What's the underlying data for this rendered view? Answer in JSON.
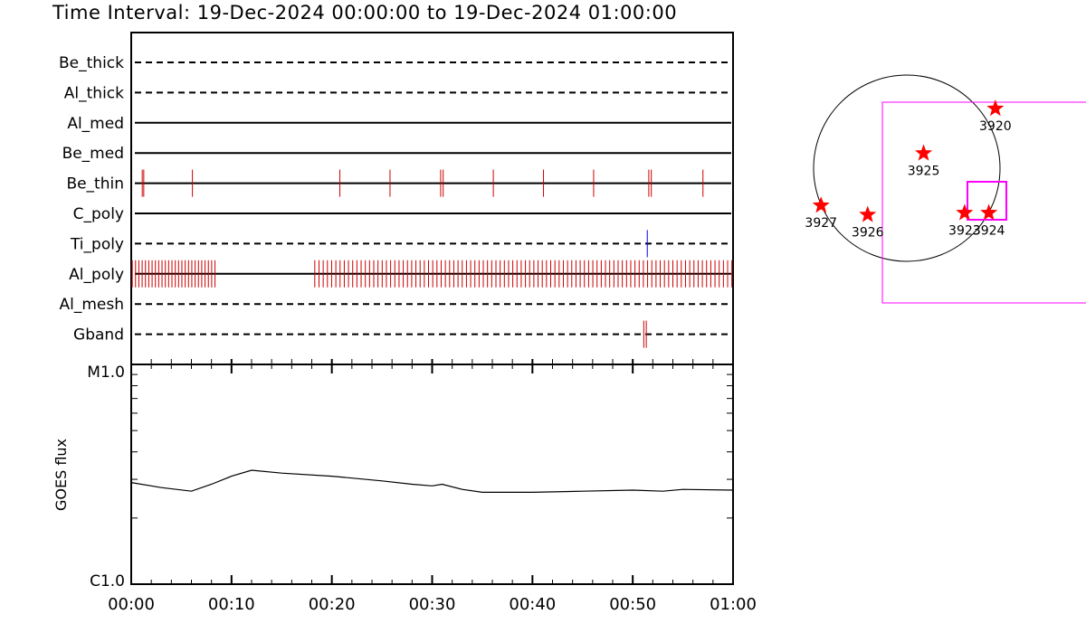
{
  "title": "Time Interval: 19-Dec-2024 00:00:00 to 19-Dec-2024 01:00:00",
  "chart_data": [
    {
      "type": "scatter",
      "panel": "filter-observation-timeline",
      "time_axis_min": 0,
      "time_axis_max": 60,
      "rows": [
        {
          "label": "Be_thick",
          "line": "dashed",
          "color": "#000000",
          "events_min": []
        },
        {
          "label": "Al_thick",
          "line": "dashed",
          "color": "#000000",
          "events_min": []
        },
        {
          "label": "Al_med",
          "line": "solid",
          "color": "#000000",
          "events_min": []
        },
        {
          "label": "Be_med",
          "line": "solid",
          "color": "#000000",
          "events_min": []
        },
        {
          "label": "Be_thin",
          "line": "solid",
          "color": "#000000",
          "events_min": [
            1.1,
            1.25,
            6.1,
            20.8,
            25.8,
            30.85,
            31.1,
            36.1,
            41.1,
            46.1,
            51.6,
            51.85,
            57.0
          ]
        },
        {
          "label": "C_poly",
          "line": "solid",
          "color": "#000000",
          "events_min": []
        },
        {
          "label": "Ti_poly",
          "line": "dashed",
          "color": "#000000",
          "events_min": [
            51.45
          ],
          "event_color": "#0000ff"
        },
        {
          "label": "Al_poly",
          "line": "solid",
          "color": "#000000",
          "event_segments": [
            {
              "start": 0.1,
              "end": 8.5,
              "step": 0.33
            },
            {
              "start": 18.3,
              "end": 60.0,
              "step": 0.42
            }
          ]
        },
        {
          "label": "Al_mesh",
          "line": "dashed",
          "color": "#000000",
          "events_min": []
        },
        {
          "label": "Gband",
          "line": "dashed",
          "color": "#000000",
          "events_min": [
            51.1,
            51.35
          ]
        }
      ],
      "event_color": "#cc0000"
    },
    {
      "type": "line",
      "panel": "goes-flux",
      "ylabel": "GOES flux",
      "yscale": "log",
      "ylim_labels": [
        "C1.0",
        "M1.0"
      ],
      "ylim": [
        1e-06,
        1e-05
      ],
      "x_ticks": [
        "00:00",
        "00:10",
        "00:20",
        "00:30",
        "00:40",
        "00:50",
        "01:00"
      ],
      "x": [
        0,
        3,
        6,
        8,
        10,
        12,
        15,
        20,
        25,
        28,
        30,
        31,
        33,
        35,
        40,
        45,
        50,
        53,
        55,
        60
      ],
      "values": [
        2.9e-06,
        2.75e-06,
        2.65e-06,
        2.85e-06,
        3.1e-06,
        3.3e-06,
        3.2e-06,
        3.1e-06,
        2.95e-06,
        2.85e-06,
        2.8e-06,
        2.85e-06,
        2.7e-06,
        2.62e-06,
        2.62e-06,
        2.65e-06,
        2.68e-06,
        2.65e-06,
        2.7e-06,
        2.68e-06
      ]
    },
    {
      "type": "scatter",
      "panel": "solar-disk-map",
      "points": [
        {
          "label": "3920",
          "x": 0.475,
          "y": 0.32
        },
        {
          "label": "3925",
          "x": 0.09,
          "y": 0.08
        },
        {
          "label": "3927",
          "x": -0.46,
          "y": -0.2
        },
        {
          "label": "3926",
          "x": -0.21,
          "y": -0.25
        },
        {
          "label": "3923",
          "x": 0.31,
          "y": -0.24
        },
        {
          "label": "3924",
          "x": 0.44,
          "y": -0.24
        }
      ],
      "marker_color": "#ff0000",
      "box_color": "#ff00ff"
    }
  ]
}
